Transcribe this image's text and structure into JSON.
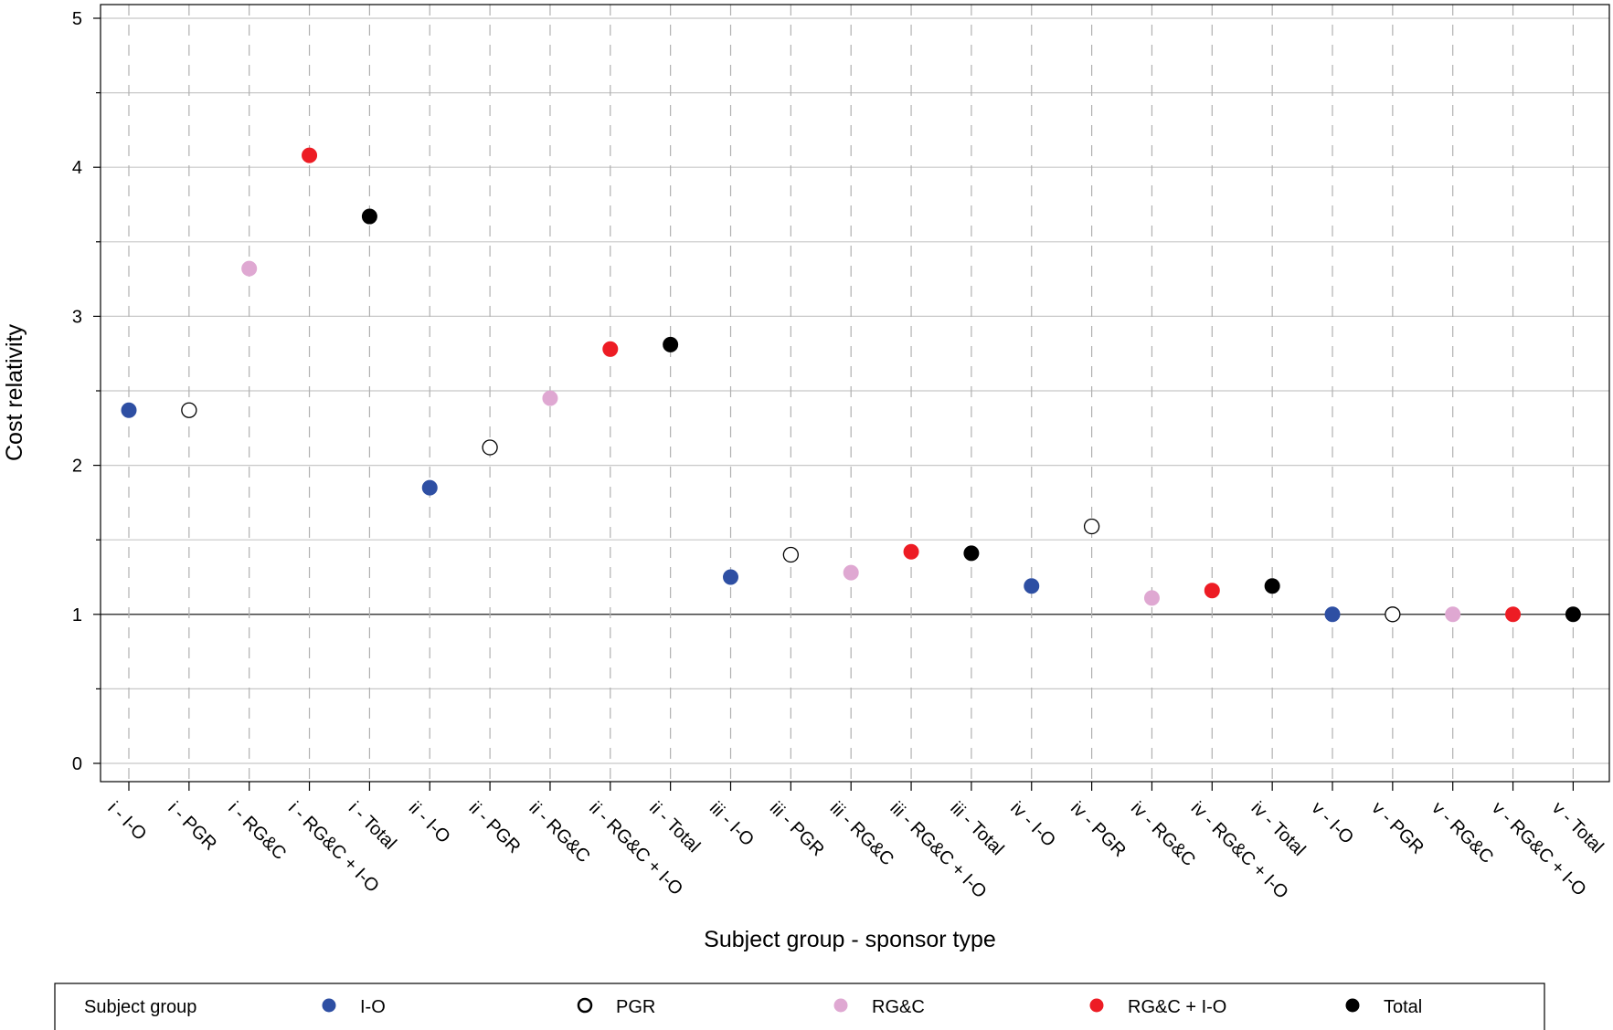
{
  "chart_data": {
    "type": "scatter",
    "xlabel": "Subject group - sponsor type",
    "ylabel": "Cost relativity",
    "ylim": [
      0,
      5
    ],
    "yticks": [
      0,
      1,
      2,
      3,
      4,
      5
    ],
    "grid": true,
    "reference_line": 1,
    "categories": [
      "i - I-O",
      "i - PGR",
      "i - RG&C",
      "i - RG&C + I-O",
      "i - Total",
      "ii - I-O",
      "ii - PGR",
      "ii - RG&C",
      "ii - RG&C + I-O",
      "ii - Total",
      "iii - I-O",
      "iii - PGR",
      "iii - RG&C",
      "iii - RG&C + I-O",
      "iii - Total",
      "iv - I-O",
      "iv - PGR",
      "iv - RG&C",
      "iv - RG&C + I-O",
      "iv - Total",
      "v - I-O",
      "v - PGR",
      "v - RG&C",
      "v - RG&C + I-O",
      "v - Total"
    ],
    "values": [
      2.37,
      2.37,
      3.32,
      4.08,
      3.67,
      1.85,
      2.12,
      2.45,
      2.78,
      2.81,
      1.25,
      1.4,
      1.28,
      1.42,
      1.41,
      1.19,
      1.59,
      1.11,
      1.16,
      1.19,
      1.0,
      1.0,
      1.0,
      1.0,
      1.0
    ],
    "point_series": [
      "I-O",
      "PGR",
      "RG&C",
      "RG&C + I-O",
      "Total",
      "I-O",
      "PGR",
      "RG&C",
      "RG&C + I-O",
      "Total",
      "I-O",
      "PGR",
      "RG&C",
      "RG&C + I-O",
      "Total",
      "I-O",
      "PGR",
      "RG&C",
      "RG&C + I-O",
      "Total",
      "I-O",
      "PGR",
      "RG&C",
      "RG&C + I-O",
      "Total"
    ],
    "series_styles": {
      "I-O": {
        "fill": "#2e4fa3",
        "stroke": "#2e4fa3"
      },
      "PGR": {
        "fill": "#ffffff",
        "stroke": "#000000"
      },
      "RG&C": {
        "fill": "#dfa8d2",
        "stroke": "#dfa8d2"
      },
      "RG&C + I-O": {
        "fill": "#ed1c24",
        "stroke": "#ed1c24"
      },
      "Total": {
        "fill": "#000000",
        "stroke": "#000000"
      }
    },
    "legend": {
      "placement": "bottom",
      "title": "Subject group",
      "items": [
        {
          "label": "I-O",
          "series": "I-O"
        },
        {
          "label": "PGR",
          "series": "PGR"
        },
        {
          "label": "RG&C",
          "series": "RG&C"
        },
        {
          "label": "RG&C + I-O",
          "series": "RG&C + I-O"
        },
        {
          "label": "Total",
          "series": "Total"
        }
      ]
    }
  }
}
